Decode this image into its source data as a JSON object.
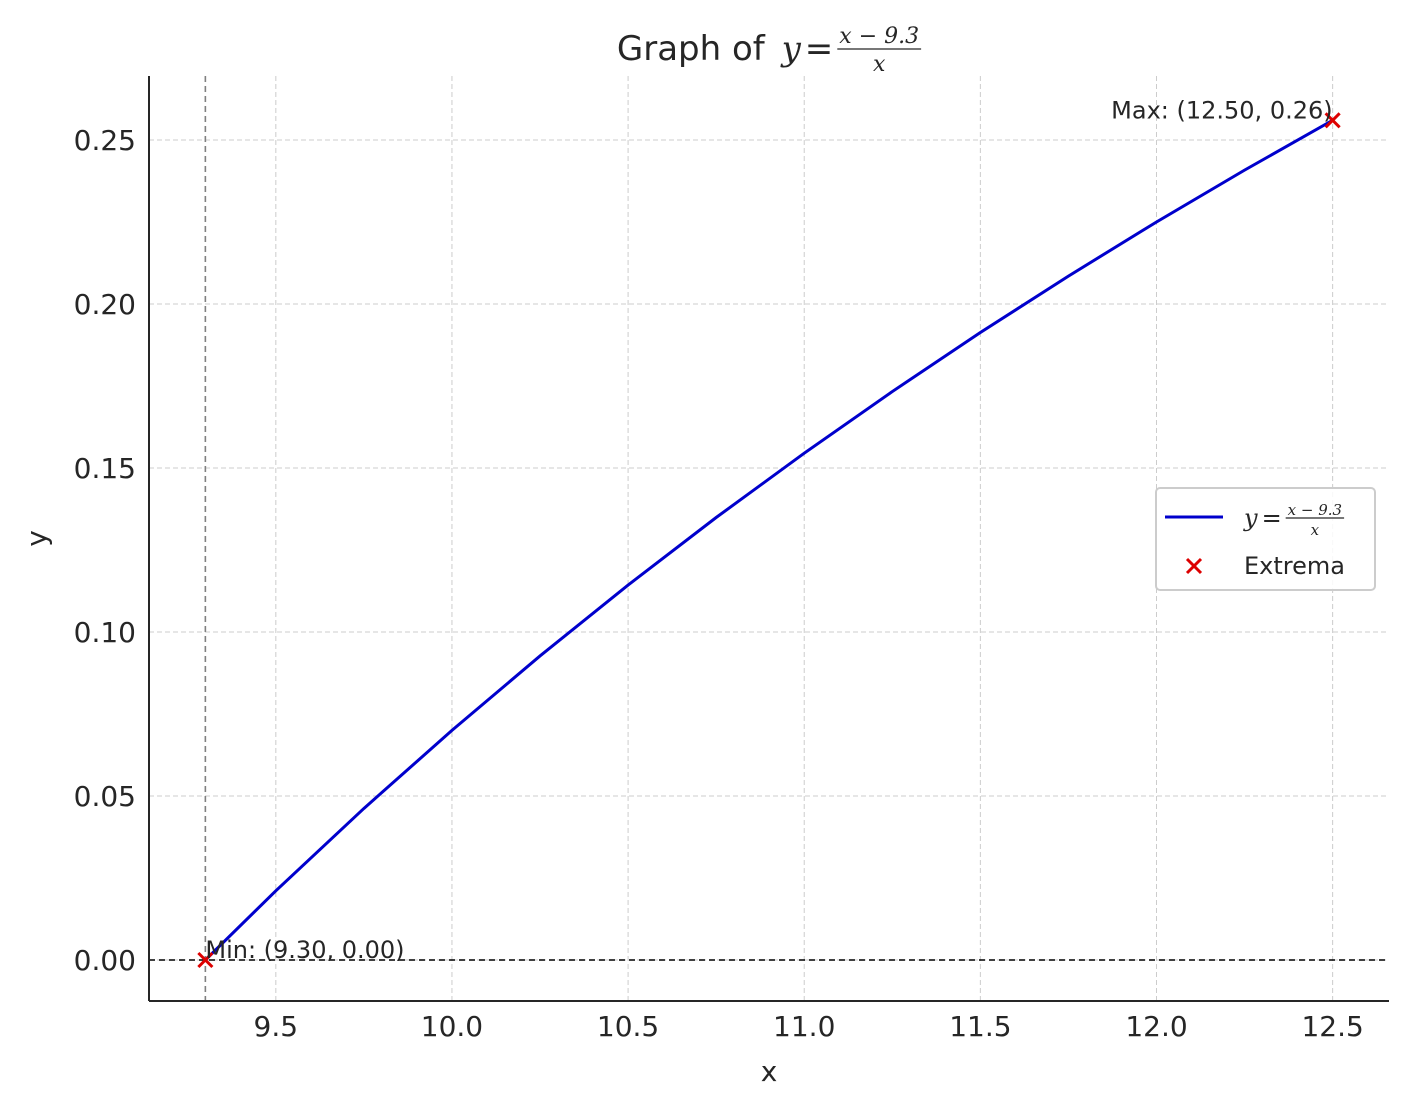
{
  "chart_data": {
    "type": "line",
    "title_prefix": "Graph of ",
    "title_math": {
      "lhs": "y",
      "numerator": "x − 9.3",
      "denominator": "x"
    },
    "xlabel": "x",
    "ylabel": "y",
    "xlim": [
      9.14,
      12.66
    ],
    "ylim": [
      -0.0125,
      0.2695
    ],
    "x_ticks": [
      9.5,
      10.0,
      10.5,
      11.0,
      11.5,
      12.0,
      12.5
    ],
    "x_tick_labels": [
      "9.5",
      "10.0",
      "10.5",
      "11.0",
      "11.5",
      "12.0",
      "12.5"
    ],
    "y_ticks": [
      0.0,
      0.05,
      0.1,
      0.15,
      0.2,
      0.25
    ],
    "y_tick_labels": [
      "0.00",
      "0.05",
      "0.10",
      "0.15",
      "0.20",
      "0.25"
    ],
    "grid": true,
    "legend_placement": "center-right",
    "series": [
      {
        "name_math": {
          "lhs": "y",
          "numerator": "x − 9.3",
          "denominator": "x"
        },
        "type": "line",
        "color": "#0000cc",
        "x": [
          9.3,
          9.5,
          9.75,
          10.0,
          10.25,
          10.5,
          10.75,
          11.0,
          11.25,
          11.5,
          11.75,
          12.0,
          12.25,
          12.5
        ],
        "y": [
          0.0,
          0.0211,
          0.0462,
          0.07,
          0.0927,
          0.1143,
          0.1349,
          0.1545,
          0.1733,
          0.1913,
          0.2085,
          0.225,
          0.2408,
          0.256
        ]
      },
      {
        "name": "Extrema",
        "type": "scatter",
        "marker": "x",
        "color": "#dd0000",
        "x": [
          9.3,
          12.5
        ],
        "y": [
          0.0,
          0.256
        ]
      }
    ],
    "reference_lines": [
      {
        "orientation": "vertical",
        "value": 9.3,
        "style": "dashed",
        "color": "#808080"
      },
      {
        "orientation": "horizontal",
        "value": 0.0,
        "style": "dashed",
        "color": "#000000"
      }
    ],
    "annotations": [
      {
        "text": "Max: (12.50, 0.26)",
        "x": 12.5,
        "y": 0.256,
        "anchor": "end"
      },
      {
        "text": "Min: (9.30, 0.00)",
        "x": 9.3,
        "y": 0.0,
        "anchor": "start"
      }
    ]
  }
}
